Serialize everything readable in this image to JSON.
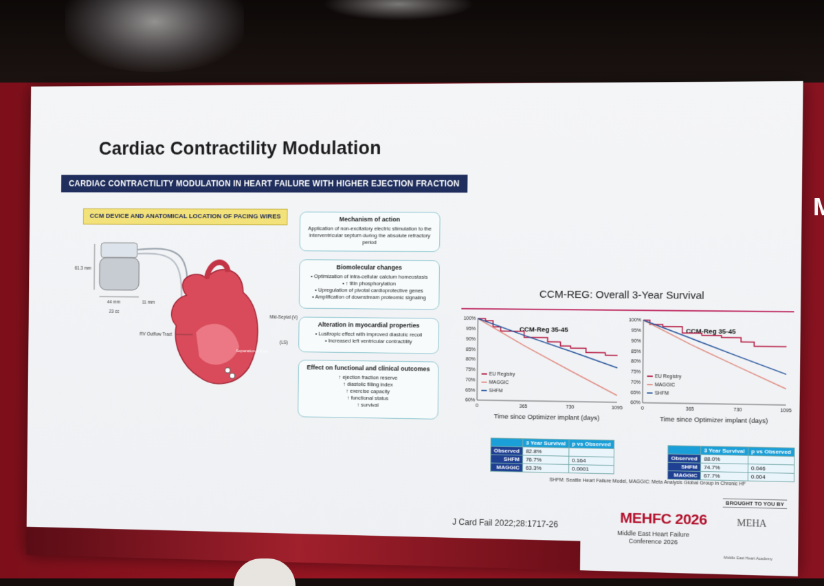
{
  "slide": {
    "title": "Cardiac Contractility Modulation",
    "banner": "CARDIAC CONTRACTILITY MODULATION IN HEART FAILURE WITH HIGHER EJECTION FRACTION",
    "device_label": "CCM DEVICE AND ANATOMICAL LOCATION OF PACING WIRES",
    "device_dims": {
      "height": "61.3 mm",
      "width": "44 mm",
      "depth": "11 mm",
      "volume": "23 cc"
    },
    "anatomy_labels": {
      "rv": "RV Outflow Tract",
      "mid_septal": "Mid-Septal (V)",
      "ls": "(LS)",
      "separation": "Separation ≥ 2 cm"
    },
    "boxes": [
      {
        "heading": "Mechanism of action",
        "text": "Application of non-excitatory electric stimulation to the interventricular septum during the absolute refractory period"
      },
      {
        "heading": "Biomolecular changes",
        "items": [
          "Optimization of intra-cellular calcium homeostasis",
          "↑ titin phosphorylation",
          "Upregulation of pivotal cardioprotective genes",
          "Amplification of downstream proteomic signaling"
        ]
      },
      {
        "heading": "Alteration in myocardial properties",
        "items": [
          "Lusitropic effect with improved diastolic recoil",
          "Increased left ventricular contractility"
        ]
      },
      {
        "heading": "Effect on functional and clinical outcomes",
        "items": [
          "↑ ejection fraction reserve",
          "↑ diastolic filling index",
          "↑ exercise capacity",
          "↑ functional status",
          "↑ survival"
        ]
      }
    ],
    "chart_heading": "CCM-REG: Overall 3-Year Survival",
    "footnote": "SHFM: Seattle Heart Failure Model, MAGGIC: Meta Analysis Global Group in Chronic HF",
    "citation": "J Card Fail 2022;28:1717-26",
    "brought_by": "BROUGHT TO YOU BY",
    "conference": {
      "name": "MEHFC 2026",
      "sub1": "Middle East Heart Failure",
      "sub2": "Conference 2026"
    },
    "meha": {
      "name": "MEHA",
      "sub": "Middle East Heart Academy"
    }
  },
  "chart_data": [
    {
      "type": "line",
      "title": "CCM-Reg 35-45",
      "xlabel": "Time since Optimizer implant (days)",
      "x_ticks": [
        0,
        365,
        730,
        1095
      ],
      "y_ticks": [
        "60%",
        "65%",
        "70%",
        "75%",
        "80%",
        "85%",
        "90%",
        "95%",
        "100%"
      ],
      "ylim": [
        60,
        100
      ],
      "xlim": [
        0,
        1095
      ],
      "legend": "bottom-left",
      "series": [
        {
          "name": "EU Registry",
          "color": "#b3123c",
          "x": [
            0,
            60,
            120,
            180,
            365,
            450,
            550,
            650,
            730,
            850,
            1000,
            1095
          ],
          "y": [
            100,
            99,
            96,
            94,
            91,
            91,
            89,
            87,
            86,
            84,
            82.8,
            82.8
          ]
        },
        {
          "name": "MAGGIC",
          "color": "#e08a80",
          "x": [
            0,
            365,
            730,
            1095
          ],
          "y": [
            100,
            87,
            75,
            63.3
          ]
        },
        {
          "name": "SHFM",
          "color": "#1f4f9a",
          "x": [
            0,
            365,
            730,
            1095
          ],
          "y": [
            100,
            92,
            84.5,
            76.7
          ]
        }
      ],
      "table": {
        "headers": [
          "",
          "3 Year Survival",
          "p vs Observed"
        ],
        "rows": [
          [
            "Observed",
            "82.8%",
            ""
          ],
          [
            "SHFM",
            "76.7%",
            "0.164"
          ],
          [
            "MAGGIC",
            "63.3%",
            "0.0001"
          ]
        ]
      }
    },
    {
      "type": "line",
      "title": "CCM-Reg 35-45",
      "xlabel": "Time since Optimizer implant (days)",
      "x_ticks": [
        0,
        365,
        730,
        1095
      ],
      "y_ticks": [
        "60%",
        "65%",
        "70%",
        "75%",
        "80%",
        "85%",
        "90%",
        "95%",
        "100%"
      ],
      "ylim": [
        60,
        100
      ],
      "xlim": [
        0,
        1095
      ],
      "legend": "bottom-left",
      "series": [
        {
          "name": "EU Registry",
          "color": "#b3123c",
          "x": [
            0,
            50,
            150,
            300,
            450,
            600,
            750,
            850,
            1095
          ],
          "y": [
            100,
            98,
            97,
            94,
            93,
            92,
            90,
            88,
            88.0
          ]
        },
        {
          "name": "MAGGIC",
          "color": "#e08a80",
          "x": [
            0,
            365,
            730,
            1095
          ],
          "y": [
            100,
            88.5,
            78,
            67.7
          ]
        },
        {
          "name": "SHFM",
          "color": "#1f4f9a",
          "x": [
            0,
            365,
            730,
            1095
          ],
          "y": [
            100,
            91.5,
            83,
            74.7
          ]
        }
      ],
      "table": {
        "headers": [
          "",
          "3 Year Survival",
          "p vs Observed"
        ],
        "rows": [
          [
            "Observed",
            "88.0%",
            ""
          ],
          [
            "SHFM",
            "74.7%",
            "0.046"
          ],
          [
            "MAGGIC",
            "67.7%",
            "0.004"
          ]
        ]
      }
    }
  ]
}
